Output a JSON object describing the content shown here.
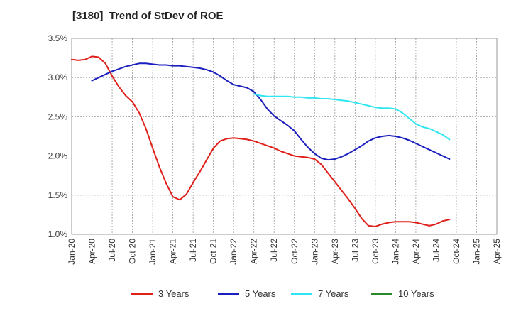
{
  "chart_data": {
    "type": "line",
    "title": "[3180]  Trend of StDev of ROE",
    "xlabel": "",
    "ylabel": "",
    "ylim": [
      1.0,
      3.5
    ],
    "yticks": [
      "1.0%",
      "1.5%",
      "2.0%",
      "2.5%",
      "3.0%",
      "3.5%"
    ],
    "ytick_values": [
      1.0,
      1.5,
      2.0,
      2.5,
      3.0,
      3.5
    ],
    "x_ticks": [
      "Jan-20",
      "Apr-20",
      "Jul-20",
      "Oct-20",
      "Jan-21",
      "Apr-21",
      "Jul-21",
      "Oct-21",
      "Jan-22",
      "Apr-22",
      "Jul-22",
      "Oct-22",
      "Jan-23",
      "Apr-23",
      "Jul-23",
      "Oct-23",
      "Jan-24",
      "Apr-24",
      "Jul-24",
      "Oct-24",
      "Jan-25",
      "Apr-25"
    ],
    "grid": true,
    "legend_position": "bottom",
    "x_unit": "months since Jan-20",
    "series": [
      {
        "name": "3 Years",
        "color": "#e0201b",
        "points": [
          [
            0,
            3.23
          ],
          [
            1,
            3.22
          ],
          [
            2,
            3.23
          ],
          [
            3,
            3.27
          ],
          [
            4,
            3.26
          ],
          [
            5,
            3.18
          ],
          [
            6,
            3.02
          ],
          [
            7,
            2.88
          ],
          [
            8,
            2.77
          ],
          [
            9,
            2.69
          ],
          [
            10,
            2.55
          ],
          [
            11,
            2.35
          ],
          [
            12,
            2.1
          ],
          [
            13,
            1.86
          ],
          [
            14,
            1.65
          ],
          [
            15,
            1.48
          ],
          [
            16,
            1.44
          ],
          [
            17,
            1.51
          ],
          [
            18,
            1.66
          ],
          [
            19,
            1.8
          ],
          [
            20,
            1.95
          ],
          [
            21,
            2.1
          ],
          [
            22,
            2.19
          ],
          [
            23,
            2.22
          ],
          [
            24,
            2.23
          ],
          [
            25,
            2.22
          ],
          [
            26,
            2.21
          ],
          [
            27,
            2.19
          ],
          [
            28,
            2.16
          ],
          [
            29,
            2.13
          ],
          [
            30,
            2.1
          ],
          [
            31,
            2.06
          ],
          [
            32,
            2.03
          ],
          [
            33,
            2.0
          ],
          [
            34,
            1.99
          ],
          [
            35,
            1.98
          ],
          [
            36,
            1.96
          ],
          [
            37,
            1.89
          ],
          [
            38,
            1.78
          ],
          [
            39,
            1.67
          ],
          [
            40,
            1.56
          ],
          [
            41,
            1.45
          ],
          [
            42,
            1.33
          ],
          [
            43,
            1.2
          ],
          [
            44,
            1.11
          ],
          [
            45,
            1.1
          ],
          [
            46,
            1.13
          ],
          [
            47,
            1.15
          ],
          [
            48,
            1.16
          ],
          [
            49,
            1.16
          ],
          [
            50,
            1.16
          ],
          [
            51,
            1.15
          ],
          [
            52,
            1.13
          ],
          [
            53,
            1.11
          ],
          [
            54,
            1.13
          ],
          [
            55,
            1.17
          ],
          [
            56,
            1.19
          ]
        ]
      },
      {
        "name": "5 Years",
        "color": "#1c1fbf",
        "points": [
          [
            3,
            2.96
          ],
          [
            4,
            3.0
          ],
          [
            5,
            3.04
          ],
          [
            6,
            3.08
          ],
          [
            7,
            3.11
          ],
          [
            8,
            3.14
          ],
          [
            9,
            3.16
          ],
          [
            10,
            3.18
          ],
          [
            11,
            3.18
          ],
          [
            12,
            3.17
          ],
          [
            13,
            3.16
          ],
          [
            14,
            3.16
          ],
          [
            15,
            3.15
          ],
          [
            16,
            3.15
          ],
          [
            17,
            3.14
          ],
          [
            18,
            3.13
          ],
          [
            19,
            3.12
          ],
          [
            20,
            3.1
          ],
          [
            21,
            3.07
          ],
          [
            22,
            3.02
          ],
          [
            23,
            2.96
          ],
          [
            24,
            2.91
          ],
          [
            25,
            2.89
          ],
          [
            26,
            2.87
          ],
          [
            27,
            2.82
          ],
          [
            28,
            2.72
          ],
          [
            29,
            2.6
          ],
          [
            30,
            2.51
          ],
          [
            31,
            2.45
          ],
          [
            32,
            2.39
          ],
          [
            33,
            2.32
          ],
          [
            34,
            2.21
          ],
          [
            35,
            2.11
          ],
          [
            36,
            2.03
          ],
          [
            37,
            1.97
          ],
          [
            38,
            1.95
          ],
          [
            39,
            1.96
          ],
          [
            40,
            1.99
          ],
          [
            41,
            2.03
          ],
          [
            42,
            2.08
          ],
          [
            43,
            2.13
          ],
          [
            44,
            2.19
          ],
          [
            45,
            2.23
          ],
          [
            46,
            2.25
          ],
          [
            47,
            2.26
          ],
          [
            48,
            2.25
          ],
          [
            49,
            2.23
          ],
          [
            50,
            2.2
          ],
          [
            51,
            2.16
          ],
          [
            52,
            2.12
          ],
          [
            53,
            2.08
          ],
          [
            54,
            2.04
          ],
          [
            55,
            2.0
          ],
          [
            56,
            1.96
          ]
        ]
      },
      {
        "name": "7 Years",
        "color": "#30e6f0",
        "points": [
          [
            27,
            2.79
          ],
          [
            28,
            2.77
          ],
          [
            29,
            2.76
          ],
          [
            30,
            2.76
          ],
          [
            31,
            2.76
          ],
          [
            32,
            2.76
          ],
          [
            33,
            2.75
          ],
          [
            34,
            2.75
          ],
          [
            35,
            2.74
          ],
          [
            36,
            2.74
          ],
          [
            37,
            2.73
          ],
          [
            38,
            2.73
          ],
          [
            39,
            2.72
          ],
          [
            40,
            2.71
          ],
          [
            41,
            2.7
          ],
          [
            42,
            2.68
          ],
          [
            43,
            2.66
          ],
          [
            44,
            2.64
          ],
          [
            45,
            2.62
          ],
          [
            46,
            2.61
          ],
          [
            47,
            2.61
          ],
          [
            48,
            2.6
          ],
          [
            49,
            2.55
          ],
          [
            50,
            2.48
          ],
          [
            51,
            2.41
          ],
          [
            52,
            2.37
          ],
          [
            53,
            2.35
          ],
          [
            54,
            2.31
          ],
          [
            55,
            2.27
          ],
          [
            56,
            2.21
          ]
        ]
      },
      {
        "name": "10 Years",
        "color": "#2a8a2a",
        "points": []
      }
    ]
  }
}
